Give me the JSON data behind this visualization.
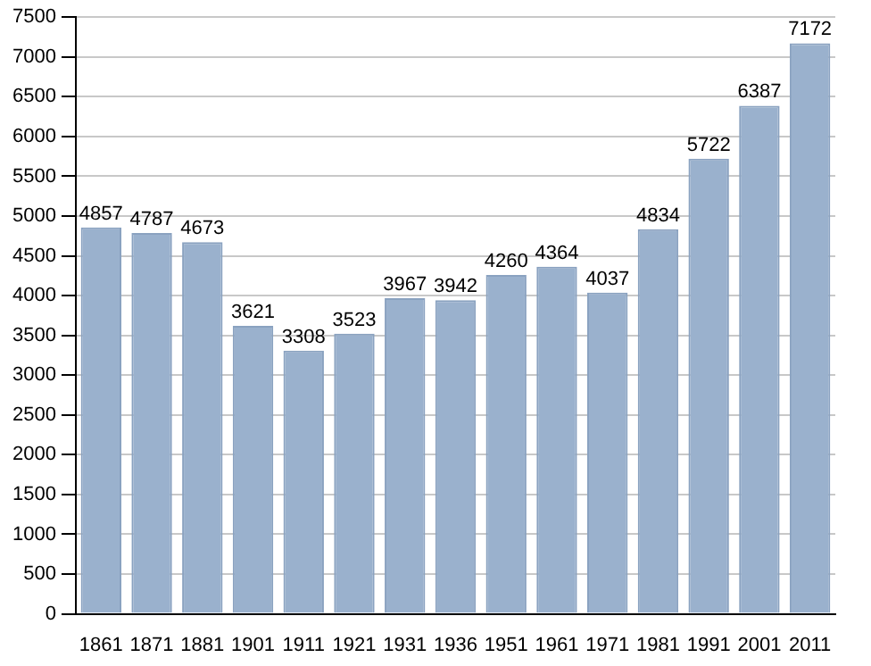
{
  "chart_data": {
    "type": "bar",
    "categories": [
      "1861",
      "1871",
      "1881",
      "1901",
      "1911",
      "1921",
      "1931",
      "1936",
      "1951",
      "1961",
      "1971",
      "1981",
      "1991",
      "2001",
      "2011"
    ],
    "values": [
      4857,
      4787,
      4673,
      3621,
      3308,
      3523,
      3967,
      3942,
      4260,
      4364,
      4037,
      4834,
      5722,
      6387,
      7172
    ],
    "color": "#9ab1cd",
    "ylim": [
      0,
      7500
    ],
    "yticks": [
      0,
      500,
      1000,
      1500,
      2000,
      2500,
      3000,
      3500,
      4000,
      4500,
      5000,
      5500,
      6000,
      6500,
      7000,
      7500
    ],
    "grid": "y",
    "legend": false,
    "data_labels": true
  }
}
